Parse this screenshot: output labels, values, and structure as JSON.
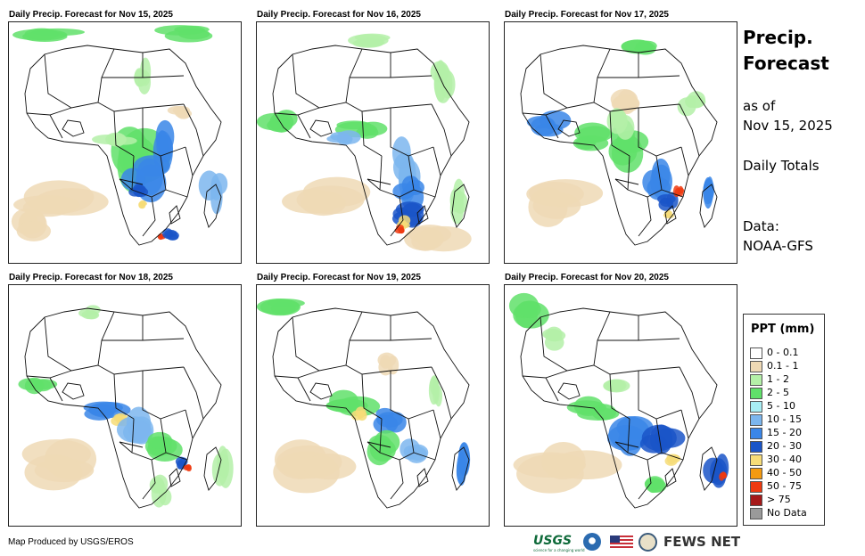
{
  "panels": [
    {
      "title": "Daily Precip. Forecast for Nov 15, 2025"
    },
    {
      "title": "Daily Precip. Forecast for Nov 16, 2025"
    },
    {
      "title": "Daily Precip. Forecast for Nov 17, 2025"
    },
    {
      "title": "Daily Precip. Forecast for Nov 18, 2025"
    },
    {
      "title": "Daily Precip. Forecast for Nov 19, 2025"
    },
    {
      "title": "Daily Precip. Forecast for Nov 20, 2025"
    }
  ],
  "side": {
    "title_line1": "Precip.",
    "title_line2": "Forecast",
    "asof_label": "as of",
    "asof_date": "Nov 15, 2025",
    "totals": "Daily Totals",
    "data_label": "Data:",
    "data_source": "NOAA-GFS"
  },
  "legend": {
    "title": "PPT (mm)",
    "items": [
      {
        "label": "0 - 0.1",
        "color": "#ffffff"
      },
      {
        "label": "0.1 - 1",
        "color": "#eed9b5"
      },
      {
        "label": "1 - 2",
        "color": "#b4f0a8"
      },
      {
        "label": "2 - 5",
        "color": "#60e06a"
      },
      {
        "label": "5 - 10",
        "color": "#a8eef4"
      },
      {
        "label": "10 - 15",
        "color": "#7cb6ee"
      },
      {
        "label": "15 - 20",
        "color": "#3a86e8"
      },
      {
        "label": "20 - 30",
        "color": "#1a55c8"
      },
      {
        "label": "30 - 40",
        "color": "#f6dc78"
      },
      {
        "label": "40 - 50",
        "color": "#f49a10"
      },
      {
        "label": "50 - 75",
        "color": "#ee3a10"
      },
      {
        "label": "> 75",
        "color": "#a51818"
      },
      {
        "label": "No Data",
        "color": "#9a9a9a"
      }
    ]
  },
  "credit": "Map Produced by USGS/EROS",
  "logos": {
    "usgs": "USGS",
    "usgs_tagline": "science for a changing world",
    "fews": "FEWS NET"
  },
  "colors": {
    "ocean": "#ffffff",
    "border": "#111111"
  }
}
